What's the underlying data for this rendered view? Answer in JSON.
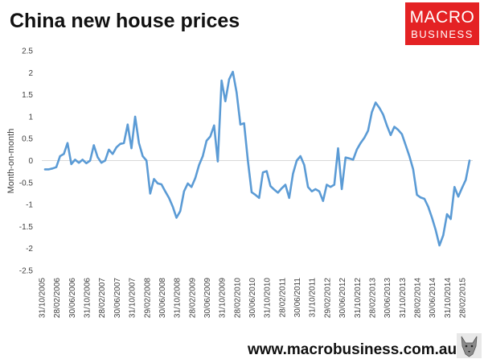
{
  "header": {
    "title": "China new house prices",
    "logo_top": "MACRO",
    "logo_bottom": "BUSINESS"
  },
  "footer": {
    "url": "www.macrobusiness.com.au"
  },
  "colors": {
    "series": "#5b9bd5",
    "logo": "#e42224",
    "axis": "#d9d9d9"
  },
  "chart_data": {
    "type": "line",
    "title": "China new house prices",
    "xlabel": "",
    "ylabel": "Month-on-month",
    "ylim": [
      -2.5,
      2.5
    ],
    "yticks": [
      "2.5",
      "2",
      "1.5",
      "1",
      "0.5",
      "0",
      "-0.5",
      "-1",
      "-1.5",
      "-2",
      "-2.5"
    ],
    "xticks": [
      "31/10/2005",
      "28/02/2006",
      "30/06/2006",
      "31/10/2006",
      "28/02/2007",
      "30/06/2007",
      "31/10/2007",
      "29/02/2008",
      "30/06/2008",
      "31/10/2008",
      "28/02/2009",
      "30/06/2009",
      "31/10/2009",
      "28/02/2010",
      "30/06/2010",
      "31/10/2010",
      "28/02/2011",
      "30/06/2011",
      "31/10/2011",
      "29/02/2012",
      "30/06/2012",
      "31/10/2012",
      "28/02/2013",
      "30/06/2013",
      "31/10/2013",
      "28/02/2014",
      "30/06/2014",
      "31/10/2014",
      "28/02/2015"
    ],
    "grid": false,
    "legend": "none",
    "series": [
      {
        "values": [
          -0.2,
          -0.2,
          -0.18,
          -0.15,
          0.1,
          0.15,
          0.4,
          -0.08,
          0.02,
          -0.05,
          0.02,
          -0.06,
          0.0,
          0.35,
          0.08,
          -0.05,
          0.0,
          0.25,
          0.15,
          0.3,
          0.38,
          0.4,
          0.82,
          0.28,
          1.0,
          0.4,
          0.1,
          0.0,
          -0.75,
          -0.42,
          -0.52,
          -0.54,
          -0.7,
          -0.85,
          -1.05,
          -1.3,
          -1.15,
          -0.7,
          -0.52,
          -0.6,
          -0.4,
          -0.1,
          0.1,
          0.45,
          0.55,
          0.8,
          -0.02,
          1.82,
          1.35,
          1.85,
          2.02,
          1.55,
          0.82,
          0.85,
          0.0,
          -0.72,
          -0.78,
          -0.85,
          -0.27,
          -0.24,
          -0.58,
          -0.66,
          -0.73,
          -0.63,
          -0.55,
          -0.85,
          -0.3,
          0.0,
          0.1,
          -0.1,
          -0.6,
          -0.7,
          -0.65,
          -0.7,
          -0.92,
          -0.55,
          -0.6,
          -0.55,
          0.28,
          -0.65,
          0.07,
          0.05,
          0.02,
          0.25,
          0.4,
          0.52,
          0.68,
          1.1,
          1.32,
          1.2,
          1.05,
          0.8,
          0.58,
          0.77,
          0.7,
          0.6,
          0.35,
          0.1,
          -0.2,
          -0.78,
          -0.84,
          -0.87,
          -1.05,
          -1.3,
          -1.58,
          -1.93,
          -1.7,
          -1.22,
          -1.33,
          -0.6,
          -0.82,
          -0.62,
          -0.44,
          0.0
        ]
      }
    ]
  }
}
